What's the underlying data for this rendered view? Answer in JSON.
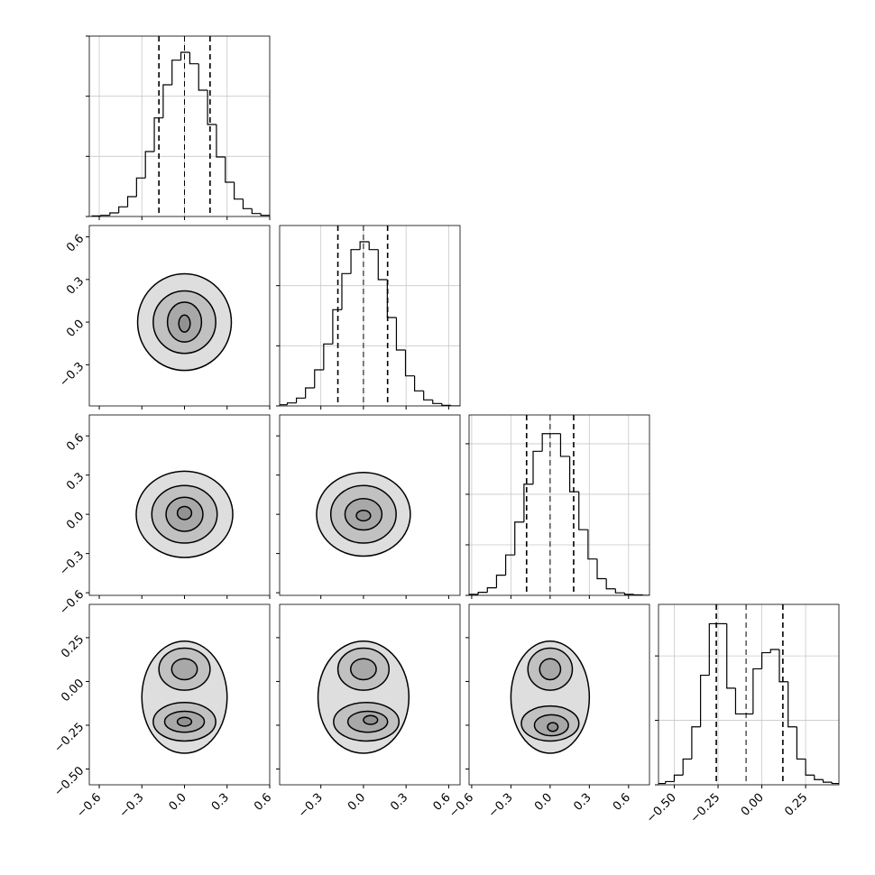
{
  "chart_data": {
    "type": "corner",
    "grid": true,
    "line_color": "#000000",
    "fill_color": "#000000",
    "variables": [
      {
        "xlim": [
          -0.67,
          0.6
        ],
        "xticks": [
          {
            "value": -0.6,
            "label": "−0.6"
          },
          {
            "value": -0.3,
            "label": "−0.3"
          },
          {
            "value": 0,
            "label": "0.0"
          },
          0.3,
          0.6
        ],
        "bins": [
          -0.65,
          -0.5875,
          -0.525,
          -0.4625,
          -0.4,
          -0.3375,
          -0.275,
          -0.2125,
          -0.15,
          -0.0875,
          -0.025,
          0.0375,
          0.1,
          0.1625,
          0.225,
          0.2875,
          0.35,
          0.4125,
          0.475,
          0.5375,
          0.6
        ],
        "values": [
          0.01,
          0.02,
          0.06,
          0.16,
          0.33,
          0.64,
          1.08,
          1.64,
          2.19,
          2.6,
          2.73,
          2.54,
          2.1,
          1.53,
          0.99,
          0.57,
          0.29,
          0.13,
          0.05,
          0.02
        ],
        "quantiles": [
          -0.18,
          0,
          0.18
        ],
        "hist_ylim": [
          0,
          3
        ],
        "hist_yticks": [
          0,
          1,
          2,
          3
        ]
      },
      {
        "xlim": [
          -0.59,
          0.68
        ],
        "xticks": [
          {
            "value": -0.3,
            "label": "−0.3"
          },
          {
            "value": 0,
            "label": "0.0"
          },
          0.3,
          0.6
        ],
        "bins": [
          -0.6,
          -0.536,
          -0.472,
          -0.408,
          -0.344,
          -0.28,
          -0.216,
          -0.152,
          -0.088,
          -0.024,
          0.04,
          0.104,
          0.168,
          0.232,
          0.296,
          0.36,
          0.424,
          0.488,
          0.552,
          0.616,
          0.68
        ],
        "values": [
          0.02,
          0.05,
          0.13,
          0.3,
          0.6,
          1.03,
          1.6,
          2.2,
          2.6,
          2.73,
          2.6,
          2.1,
          1.47,
          0.93,
          0.5,
          0.25,
          0.1,
          0.04,
          0.01,
          0
        ],
        "quantiles": [
          -0.18,
          0,
          0.17
        ],
        "hist_ylim": [
          0,
          3
        ],
        "hist_yticks": [
          0,
          1,
          2
        ]
      },
      {
        "xlim": [
          -0.62,
          0.76
        ],
        "xticks": [
          {
            "value": -0.6,
            "label": "−0.6"
          },
          {
            "value": -0.3,
            "label": "−0.3"
          },
          {
            "value": 0,
            "label": "0.0"
          },
          0.3,
          0.6
        ],
        "bins": [
          -0.62,
          -0.55,
          -0.48,
          -0.41,
          -0.34,
          -0.27,
          -0.2,
          -0.13,
          -0.06,
          0.01,
          0.08,
          0.15,
          0.22,
          0.29,
          0.36,
          0.43,
          0.5,
          0.57,
          0.64,
          0.71,
          0.78
        ],
        "values": [
          0.02,
          0.06,
          0.15,
          0.4,
          0.8,
          1.45,
          2.2,
          2.85,
          3.2,
          3.2,
          2.75,
          2.05,
          1.3,
          0.72,
          0.33,
          0.13,
          0.05,
          0.02,
          0.01,
          0
        ],
        "quantiles": [
          -0.18,
          0,
          0.18
        ],
        "hist_ylim": [
          0,
          3.57
        ],
        "hist_yticks": [
          0,
          1,
          2,
          3
        ]
      },
      {
        "xlim": [
          -0.59,
          0.44
        ],
        "xticks": [
          {
            "value": -0.5,
            "label": "−0.50"
          },
          {
            "value": -0.25,
            "label": "−0.25"
          },
          {
            "value": 0,
            "label": "0.00"
          },
          0.25
        ],
        "bins": [
          -0.6,
          -0.55,
          -0.5,
          -0.45,
          -0.4,
          -0.35,
          -0.3,
          -0.25,
          -0.2,
          -0.15,
          -0.1,
          -0.05,
          0,
          0.05,
          0.1,
          0.15,
          0.2,
          0.25,
          0.3,
          0.35,
          0.4,
          0.45
        ],
        "values": [
          0.02,
          0.05,
          0.15,
          0.4,
          0.9,
          1.7,
          2.5,
          2.5,
          1.5,
          1.1,
          1.1,
          1.8,
          2.05,
          2.1,
          1.6,
          0.9,
          0.4,
          0.15,
          0.08,
          0.04,
          0.02
        ],
        "quantiles": [
          -0.26,
          -0.09,
          0.12
        ],
        "hist_ylim": [
          0,
          2.8
        ],
        "hist_yticks": [
          0,
          1,
          2
        ]
      }
    ],
    "pairs": [
      {
        "contours": [
          {
            "cx": 0,
            "cy": 0,
            "rx": 0.33,
            "ry": 0.34
          },
          {
            "cx": 0,
            "cy": 0,
            "rx": 0.22,
            "ry": 0.22
          },
          {
            "cx": 0,
            "cy": 0,
            "rx": 0.12,
            "ry": 0.14
          },
          {
            "cx": 0,
            "cy": -0.01,
            "rx": 0.04,
            "ry": 0.06
          }
        ]
      },
      {
        "contours": [
          {
            "cx": 0,
            "cy": 0,
            "rx": 0.34,
            "ry": 0.33
          },
          {
            "cx": 0,
            "cy": 0,
            "rx": 0.23,
            "ry": 0.22
          },
          {
            "cx": 0,
            "cy": 0,
            "rx": 0.13,
            "ry": 0.13
          },
          {
            "cx": 0,
            "cy": 0.01,
            "rx": 0.05,
            "ry": 0.05
          }
        ]
      },
      {
        "contours": [
          {
            "cx": 0,
            "cy": 0,
            "rx": 0.33,
            "ry": 0.32
          },
          {
            "cx": 0,
            "cy": 0,
            "rx": 0.23,
            "ry": 0.22
          },
          {
            "cx": 0,
            "cy": 0,
            "rx": 0.13,
            "ry": 0.12
          },
          {
            "cx": 0,
            "cy": -0.01,
            "rx": 0.05,
            "ry": 0.04
          }
        ]
      },
      {
        "contours": [
          {
            "cx": 0,
            "cy": -0.09,
            "rx": 0.3,
            "ry": 0.32
          },
          {
            "cx": 0,
            "cy": 0.07,
            "rx": 0.18,
            "ry": 0.12
          },
          {
            "cx": 0,
            "cy": 0.07,
            "rx": 0.09,
            "ry": 0.06
          },
          {
            "cx": 0,
            "cy": -0.23,
            "rx": 0.22,
            "ry": 0.11
          },
          {
            "cx": 0,
            "cy": -0.23,
            "rx": 0.14,
            "ry": 0.06
          },
          {
            "cx": 0,
            "cy": -0.23,
            "rx": 0.05,
            "ry": 0.025
          }
        ]
      },
      {
        "contours": [
          {
            "cx": 0,
            "cy": -0.09,
            "rx": 0.32,
            "ry": 0.32
          },
          {
            "cx": 0,
            "cy": 0.07,
            "rx": 0.18,
            "ry": 0.12
          },
          {
            "cx": 0,
            "cy": 0.07,
            "rx": 0.09,
            "ry": 0.06
          },
          {
            "cx": 0.02,
            "cy": -0.23,
            "rx": 0.23,
            "ry": 0.11
          },
          {
            "cx": 0.03,
            "cy": -0.23,
            "rx": 0.14,
            "ry": 0.06
          },
          {
            "cx": 0.05,
            "cy": -0.22,
            "rx": 0.05,
            "ry": 0.025
          }
        ]
      },
      {
        "contours": [
          {
            "cx": 0,
            "cy": -0.09,
            "rx": 0.3,
            "ry": 0.32
          },
          {
            "cx": 0,
            "cy": 0.07,
            "rx": 0.17,
            "ry": 0.12
          },
          {
            "cx": 0,
            "cy": 0.07,
            "rx": 0.08,
            "ry": 0.06
          },
          {
            "cx": 0,
            "cy": -0.24,
            "rx": 0.22,
            "ry": 0.1
          },
          {
            "cx": 0.01,
            "cy": -0.25,
            "rx": 0.13,
            "ry": 0.06
          },
          {
            "cx": 0.02,
            "cy": -0.26,
            "rx": 0.04,
            "ry": 0.025
          }
        ]
      }
    ]
  }
}
